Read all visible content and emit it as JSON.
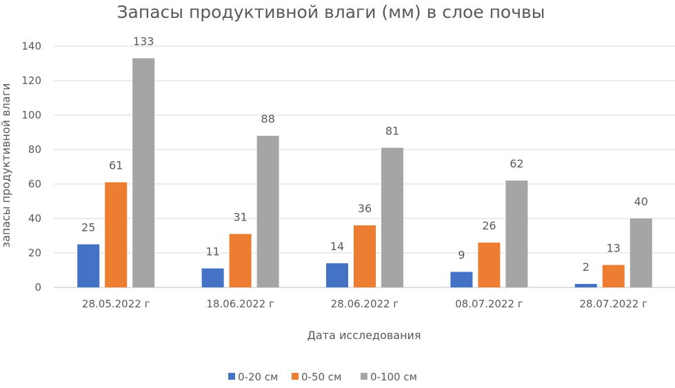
{
  "chart_data": {
    "type": "bar",
    "title": "Запасы продуктивной влаги (мм) в слое почвы",
    "xlabel": "Дата исследования",
    "ylabel": "запасы продуктивной влаги",
    "ylim": [
      0,
      140
    ],
    "yticks": [
      0,
      20,
      40,
      60,
      80,
      100,
      120,
      140
    ],
    "grid": true,
    "legend_position": "bottom",
    "categories": [
      "28.05.2022 г",
      "18.06.2022 г",
      "28.06.2022 г",
      "08.07.2022 г",
      "28.07.2022 г"
    ],
    "series": [
      {
        "name": "0-20 см",
        "color": "#4472C4",
        "values": [
          25,
          11,
          14,
          9,
          2
        ]
      },
      {
        "name": "0-50 см",
        "color": "#ED7D31",
        "values": [
          61,
          31,
          36,
          26,
          13
        ]
      },
      {
        "name": "0-100 см",
        "color": "#A5A5A5",
        "values": [
          133,
          88,
          81,
          62,
          40
        ]
      }
    ]
  }
}
